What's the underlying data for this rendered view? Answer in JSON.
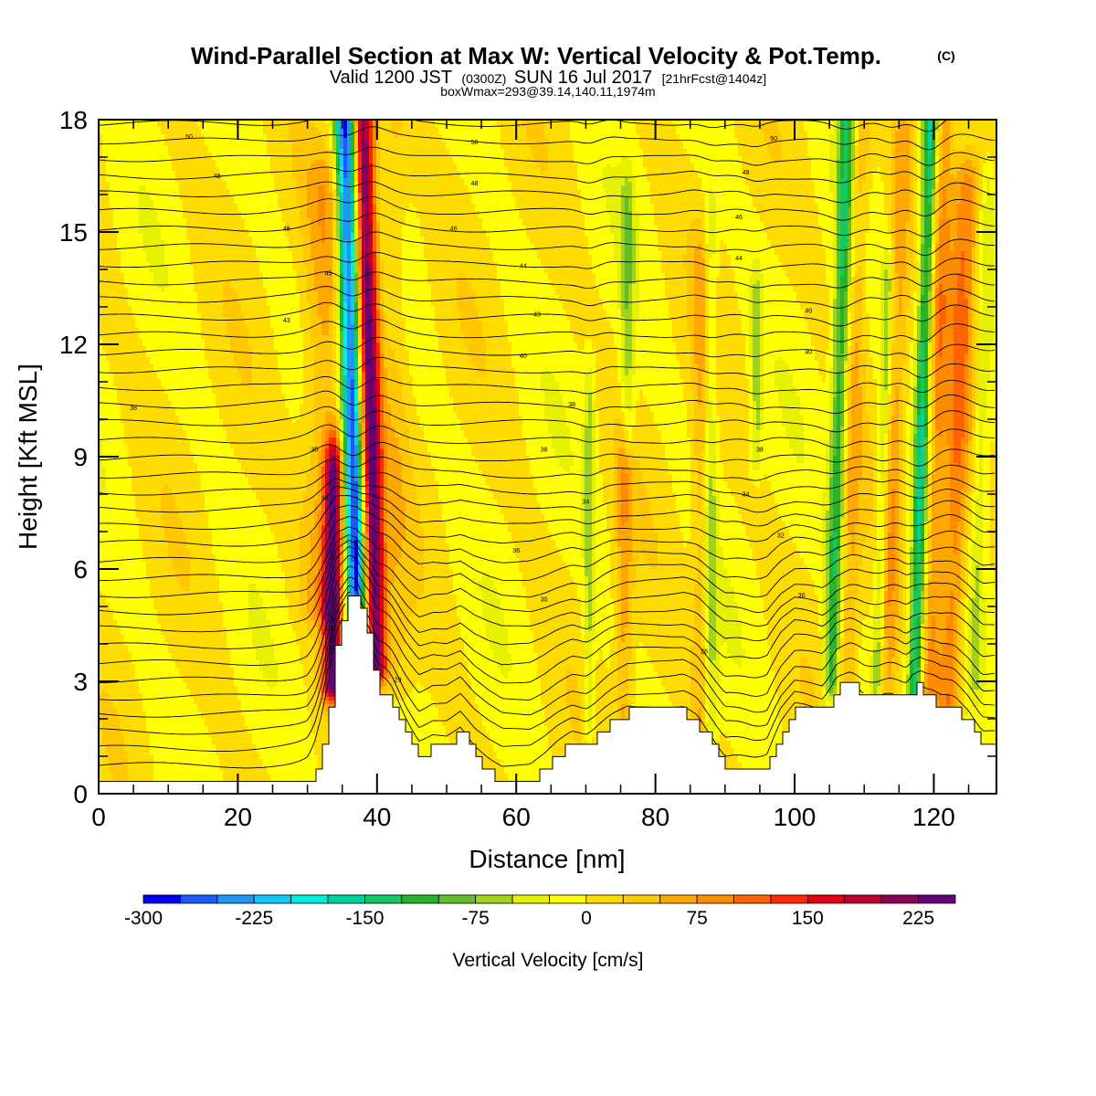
{
  "title": {
    "main": "Wind-Parallel Section at Max W: Vertical Velocity & Pot.Temp.",
    "mark": "(C)",
    "sub_valid": "Valid 1200 JST",
    "sub_z": "(0300Z)",
    "sub_date": "SUN 16 Jul 2017",
    "sub_fcst": "[21hrFcst@1404z]",
    "boxwmax": "boxWmax=293@39.14,140.11,1974m"
  },
  "chart_data": {
    "type": "heatmap",
    "xlabel": "Distance [nm]",
    "ylabel": "Height [Kft MSL]",
    "xlim": [
      0,
      129
    ],
    "ylim": [
      0,
      18
    ],
    "x_ticks": [
      "0",
      "20",
      "40",
      "60",
      "80",
      "100",
      "120"
    ],
    "y_ticks": [
      "0",
      "3",
      "6",
      "9",
      "12",
      "15",
      "18"
    ],
    "colorbar": {
      "title": "Vertical Velocity [cm/s]",
      "tick_labels": [
        "-300",
        "-225",
        "-150",
        "-75",
        "0",
        "75",
        "150",
        "225"
      ],
      "tick_values": [
        -300,
        -225,
        -150,
        -75,
        0,
        75,
        150,
        225
      ],
      "min": -300,
      "step": 25,
      "colors": [
        "#0000f0",
        "#1e5af5",
        "#1e96f5",
        "#14c8ff",
        "#00f0e0",
        "#00d2a0",
        "#14c864",
        "#28b428",
        "#64be28",
        "#a0d21e",
        "#e6f000",
        "#ffff00",
        "#ffdc00",
        "#ffc800",
        "#ffa800",
        "#ff8c00",
        "#ff6400",
        "#ff2800",
        "#e60014",
        "#be0032",
        "#8c005a",
        "#640078"
      ]
    },
    "terrain_kft": [
      [
        0,
        0.3
      ],
      [
        30,
        0.3
      ],
      [
        31,
        0.6
      ],
      [
        32,
        1.3
      ],
      [
        33,
        2.3
      ],
      [
        34,
        3.9
      ],
      [
        35,
        4.6
      ],
      [
        36,
        5.3
      ],
      [
        37,
        5.3
      ],
      [
        38,
        4.6
      ],
      [
        39,
        3.9
      ],
      [
        40,
        2.9
      ],
      [
        42,
        2.4
      ],
      [
        44,
        1.6
      ],
      [
        46,
        1.0
      ],
      [
        48,
        1.3
      ],
      [
        50,
        1.3
      ],
      [
        52,
        1.6
      ],
      [
        54,
        1.0
      ],
      [
        56,
        0.6
      ],
      [
        58,
        0.3
      ],
      [
        60,
        0.3
      ],
      [
        62,
        0.3
      ],
      [
        64,
        0.6
      ],
      [
        66,
        1.0
      ],
      [
        68,
        1.3
      ],
      [
        70,
        1.3
      ],
      [
        72,
        1.6
      ],
      [
        74,
        1.9
      ],
      [
        76,
        2.2
      ],
      [
        78,
        2.2
      ],
      [
        80,
        2.2
      ],
      [
        82,
        2.2
      ],
      [
        84,
        2.2
      ],
      [
        86,
        1.9
      ],
      [
        88,
        1.3
      ],
      [
        90,
        0.6
      ],
      [
        92,
        0.6
      ],
      [
        96,
        0.6
      ],
      [
        98,
        1.6
      ],
      [
        100,
        2.2
      ],
      [
        104,
        2.2
      ],
      [
        106,
        2.9
      ],
      [
        108,
        2.9
      ],
      [
        110,
        2.6
      ],
      [
        114,
        2.6
      ],
      [
        116,
        2.6
      ],
      [
        117,
        2.9
      ],
      [
        118,
        2.9
      ],
      [
        119,
        2.6
      ],
      [
        121,
        2.2
      ],
      [
        123,
        2.2
      ],
      [
        125,
        1.9
      ],
      [
        127,
        1.3
      ],
      [
        129,
        1.3
      ]
    ],
    "w_features": [
      {
        "x": 37.3,
        "tilt_nm_per_kft": -0.13,
        "y_bottom_kft": 3.5,
        "y_top_kft": 18,
        "amp_cm_s": -290,
        "width_nm": 1.5
      },
      {
        "x": 39.8,
        "tilt_nm_per_kft": -0.13,
        "y_bottom_kft": 3.5,
        "y_top_kft": 18,
        "amp_cm_s": 250,
        "width_nm": 1.6
      },
      {
        "x": 33.6,
        "tilt_nm_per_kft": 0.05,
        "y_bottom_kft": 3.0,
        "y_top_kft": 8.5,
        "amp_cm_s": 230,
        "width_nm": 1.4
      },
      {
        "x": 32.0,
        "tilt_nm_per_kft": 0.05,
        "y_bottom_kft": 5.0,
        "y_top_kft": 16.0,
        "amp_cm_s": 60,
        "width_nm": 3.0
      },
      {
        "x": 43.0,
        "tilt_nm_per_kft": -0.05,
        "y_bottom_kft": 3.0,
        "y_top_kft": 18,
        "amp_cm_s": 30,
        "width_nm": 2.0
      },
      {
        "x": 70.5,
        "tilt_nm_per_kft": 0.0,
        "y_bottom_kft": 1.8,
        "y_top_kft": 10.5,
        "amp_cm_s": -55,
        "width_nm": 0.8
      },
      {
        "x": 75.5,
        "tilt_nm_per_kft": 0.0,
        "y_bottom_kft": 2.0,
        "y_top_kft": 9.0,
        "amp_cm_s": 60,
        "width_nm": 1.2
      },
      {
        "x": 76.0,
        "tilt_nm_per_kft": 0.0,
        "y_bottom_kft": 9.5,
        "y_top_kft": 15.5,
        "amp_cm_s": -60,
        "width_nm": 1.0
      },
      {
        "x": 88.0,
        "tilt_nm_per_kft": 0.0,
        "y_bottom_kft": 2.0,
        "y_top_kft": 15.0,
        "amp_cm_s": -55,
        "width_nm": 0.9
      },
      {
        "x": 86.5,
        "tilt_nm_per_kft": 0.0,
        "y_bottom_kft": 2.0,
        "y_top_kft": 14.0,
        "amp_cm_s": 45,
        "width_nm": 1.3
      },
      {
        "x": 94.5,
        "tilt_nm_per_kft": 0.0,
        "y_bottom_kft": 9.0,
        "y_top_kft": 13.0,
        "amp_cm_s": -55,
        "width_nm": 0.8
      },
      {
        "x": 105.5,
        "tilt_nm_per_kft": 0.15,
        "y_bottom_kft": 3.0,
        "y_top_kft": 18,
        "amp_cm_s": -125,
        "width_nm": 1.2
      },
      {
        "x": 107.5,
        "tilt_nm_per_kft": 0.15,
        "y_bottom_kft": 3.0,
        "y_top_kft": 18,
        "amp_cm_s": 55,
        "width_nm": 1.5
      },
      {
        "x": 112.0,
        "tilt_nm_per_kft": 0.15,
        "y_bottom_kft": 3.0,
        "y_top_kft": 13.5,
        "amp_cm_s": -70,
        "width_nm": 0.8
      },
      {
        "x": 113.5,
        "tilt_nm_per_kft": 0.15,
        "y_bottom_kft": 3.0,
        "y_top_kft": 18,
        "amp_cm_s": 60,
        "width_nm": 1.4
      },
      {
        "x": 117.5,
        "tilt_nm_per_kft": 0.15,
        "y_bottom_kft": 2.8,
        "y_top_kft": 18,
        "amp_cm_s": -160,
        "width_nm": 1.1
      },
      {
        "x": 119.5,
        "tilt_nm_per_kft": 0.15,
        "y_bottom_kft": 2.8,
        "y_top_kft": 18,
        "amp_cm_s": 75,
        "width_nm": 1.5
      },
      {
        "x": 122.5,
        "tilt_nm_per_kft": 0.18,
        "y_bottom_kft": 2.5,
        "y_top_kft": 16.0,
        "amp_cm_s": 100,
        "width_nm": 1.8
      },
      {
        "x": 126.0,
        "tilt_nm_per_kft": 0.15,
        "y_bottom_kft": 3.0,
        "y_top_kft": 16.0,
        "amp_cm_s": -40,
        "width_nm": 1.0
      }
    ],
    "theta_contour_labels": [
      {
        "text": "50",
        "x": 13,
        "y": 17.55
      },
      {
        "text": "48",
        "x": 17,
        "y": 16.5
      },
      {
        "text": "46",
        "x": 27,
        "y": 15.1
      },
      {
        "text": "45",
        "x": 33,
        "y": 13.9
      },
      {
        "text": "43",
        "x": 27,
        "y": 12.65
      },
      {
        "text": "38",
        "x": 5,
        "y": 10.3
      },
      {
        "text": "35",
        "x": 31,
        "y": 9.2
      },
      {
        "text": "34",
        "x": 32.5,
        "y": 7.9
      },
      {
        "text": "29",
        "x": 43,
        "y": 3.05
      },
      {
        "text": "50",
        "x": 54,
        "y": 17.4
      },
      {
        "text": "48",
        "x": 54,
        "y": 16.3
      },
      {
        "text": "46",
        "x": 51,
        "y": 15.1
      },
      {
        "text": "44",
        "x": 61,
        "y": 14.1
      },
      {
        "text": "43",
        "x": 63,
        "y": 12.8
      },
      {
        "text": "40",
        "x": 61,
        "y": 11.7
      },
      {
        "text": "38",
        "x": 68,
        "y": 10.4
      },
      {
        "text": "38",
        "x": 64,
        "y": 9.2
      },
      {
        "text": "34",
        "x": 70,
        "y": 7.8
      },
      {
        "text": "36",
        "x": 60,
        "y": 6.5
      },
      {
        "text": "30",
        "x": 64,
        "y": 5.2
      },
      {
        "text": "50",
        "x": 97,
        "y": 17.5
      },
      {
        "text": "48",
        "x": 93,
        "y": 16.6
      },
      {
        "text": "46",
        "x": 92,
        "y": 15.4
      },
      {
        "text": "44",
        "x": 92,
        "y": 14.3
      },
      {
        "text": "40",
        "x": 102,
        "y": 12.9
      },
      {
        "text": "40",
        "x": 102,
        "y": 11.8
      },
      {
        "text": "38",
        "x": 95,
        "y": 9.2
      },
      {
        "text": "34",
        "x": 93,
        "y": 8.0
      },
      {
        "text": "32",
        "x": 98,
        "y": 6.9
      },
      {
        "text": "30",
        "x": 101,
        "y": 5.3
      },
      {
        "text": "28",
        "x": 87,
        "y": 3.8
      }
    ]
  }
}
